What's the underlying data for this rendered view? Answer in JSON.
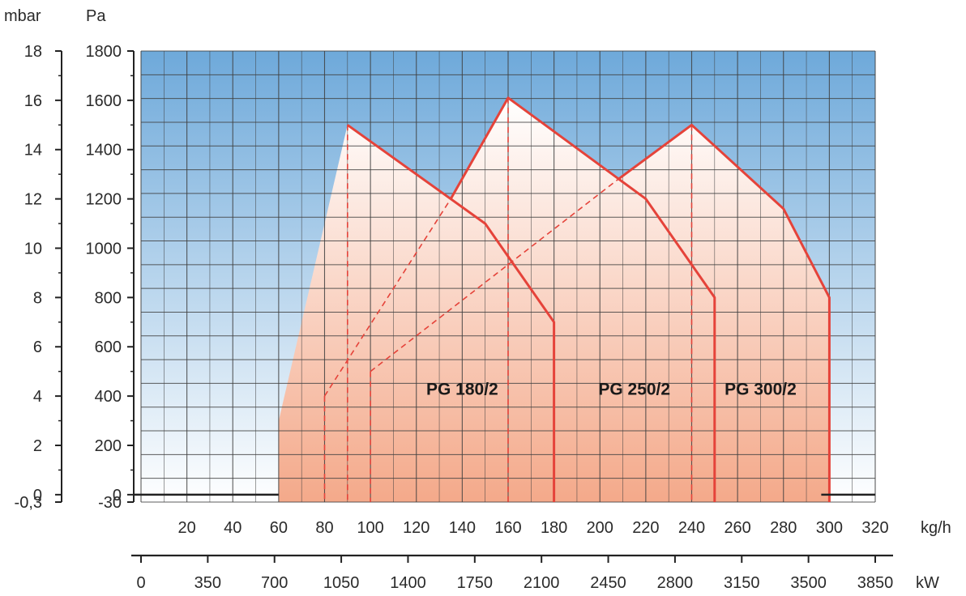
{
  "chart_data": {
    "type": "area",
    "axes": {
      "y_left_unit": "mbar",
      "y_right_unit": "Pa",
      "x_top_unit": "kg/h",
      "x_bottom_unit": "kW",
      "ylim_pa": [
        -30,
        1800
      ],
      "xlim_kgh": [
        0,
        320
      ],
      "y_mbar_ticks": [
        "-0,3",
        "0",
        "2",
        "4",
        "6",
        "8",
        "10",
        "12",
        "14",
        "16",
        "18"
      ],
      "y_pa_ticks": [
        "-30",
        "0",
        "200",
        "400",
        "600",
        "800",
        "1000",
        "1200",
        "1400",
        "1600",
        "1800"
      ],
      "x_kgh_ticks": [
        "20",
        "40",
        "60",
        "80",
        "100",
        "120",
        "140",
        "160",
        "180",
        "200",
        "220",
        "240",
        "260",
        "280",
        "300",
        "320"
      ],
      "x_kw_ticks": [
        "0",
        "350",
        "700",
        "1050",
        "1400",
        "1750",
        "2100",
        "2450",
        "2800",
        "3150",
        "3500",
        "3850"
      ],
      "grid": true
    },
    "series": [
      {
        "name": "PG 180/2",
        "outline_kgh_pa": [
          [
            90,
            1500
          ],
          [
            150,
            1100
          ],
          [
            180,
            700
          ],
          [
            180,
            -30
          ]
        ],
        "ignition_kgh": 90,
        "start_line_kgh_pa": [
          [
            80,
            400
          ],
          [
            135,
            1200
          ]
        ]
      },
      {
        "name": "PG 250/2",
        "outline_kgh_pa": [
          [
            135,
            1200
          ],
          [
            160,
            1610
          ],
          [
            220,
            1200
          ],
          [
            250,
            800
          ],
          [
            250,
            -30
          ]
        ],
        "ignition_kgh": 160,
        "start_line_kgh_pa": [
          [
            100,
            500
          ],
          [
            208,
            1280
          ]
        ]
      },
      {
        "name": "PG 300/2",
        "outline_kgh_pa": [
          [
            208,
            1280
          ],
          [
            240,
            1500
          ],
          [
            280,
            1160
          ],
          [
            300,
            800
          ],
          [
            300,
            -30
          ]
        ],
        "ignition_kgh": 240
      }
    ],
    "envelope_kgh_pa": [
      [
        60,
        300
      ],
      [
        90,
        1500
      ],
      [
        135,
        1200
      ],
      [
        160,
        1610
      ],
      [
        208,
        1280
      ],
      [
        240,
        1500
      ],
      [
        280,
        1160
      ],
      [
        300,
        800
      ],
      [
        300,
        -30
      ],
      [
        60,
        -30
      ]
    ],
    "zero_line_segments_kgh": [
      [
        0,
        60
      ],
      [
        300,
        320
      ]
    ],
    "colors": {
      "outline": "#e5433a",
      "fill_top": "#ffffff",
      "fill_bottom": "#f4a98a",
      "sky_top": "#6ea9da",
      "sky_bottom": "#ffffff",
      "grid": "#404040"
    }
  }
}
